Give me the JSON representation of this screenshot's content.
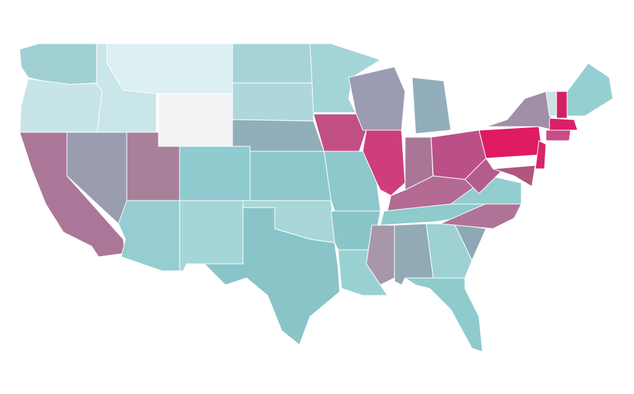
{
  "map": {
    "regions": [
      {
        "color": "#9fcfd3"
      },
      {
        "color": "#c7e5e8"
      },
      {
        "color": "#ab7798"
      },
      {
        "color": "#9a9cb0"
      },
      {
        "color": "#c9e6e9"
      },
      {
        "color": "#dceff2"
      },
      {
        "color": "#f2f3f5"
      },
      {
        "color": "#a8809a"
      },
      {
        "color": "#96cdd0"
      },
      {
        "color": "#8fcbcf"
      },
      {
        "color": "#a6d5d8"
      },
      {
        "color": "#a6d4d6"
      },
      {
        "color": "#aed7da"
      },
      {
        "color": "#91afba"
      },
      {
        "color": "#8dc8cc"
      },
      {
        "color": "#a9d6d8"
      },
      {
        "color": "#88c4c8"
      },
      {
        "color": "#a3d4d6"
      },
      {
        "color": "#c24f84"
      },
      {
        "color": "#8dc8cc"
      },
      {
        "color": "#89c5c9"
      },
      {
        "color": "#99d1d3"
      },
      {
        "color": "#9b9cb1"
      },
      {
        "color": "#cf3e7c"
      },
      {
        "color": "#93aebb"
      },
      {
        "color": "#a87796"
      },
      {
        "color": "#bc4f87"
      },
      {
        "color": "#b46a93"
      },
      {
        "color": "#8ecbcd"
      },
      {
        "color": "#a897ab"
      },
      {
        "color": "#92a9b6"
      },
      {
        "color": "#9dd1d3"
      },
      {
        "color": "#8fcbcd"
      },
      {
        "color": "#8da9b5"
      },
      {
        "color": "#ae7497"
      },
      {
        "color": "#92cdd0"
      },
      {
        "color": "#b45d8d"
      },
      {
        "color": "#e01a63"
      },
      {
        "color": "#a28ea6"
      },
      {
        "color": "#d8246b"
      },
      {
        "color": "#b0567f"
      },
      {
        "color": "#c7e3e6"
      },
      {
        "color": "#d31f64"
      },
      {
        "color": "#95cfd2"
      },
      {
        "color": "#da2068"
      },
      {
        "color": "#c94b87"
      }
    ]
  }
}
